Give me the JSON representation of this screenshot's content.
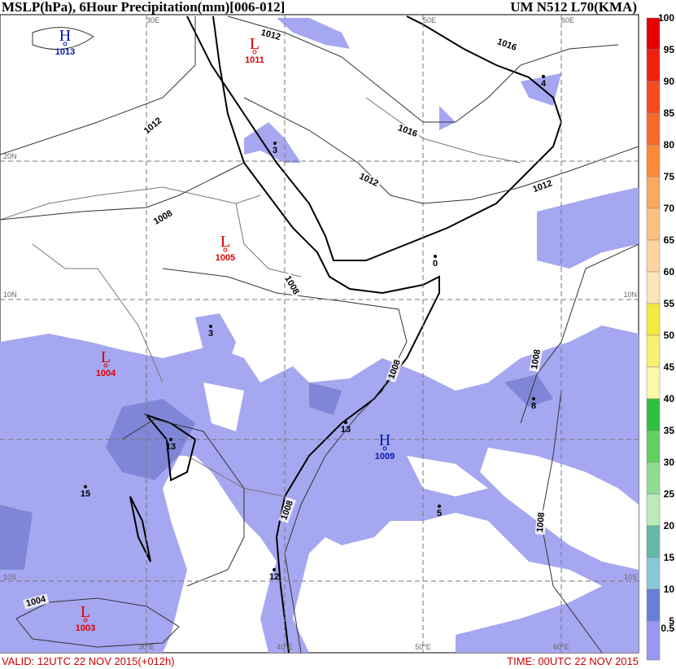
{
  "header": {
    "title": "MSLP(hPa), 6Hour Precipitation(mm)[006-012]",
    "source": "UM N512 L70(KMA)"
  },
  "footer": {
    "valid": "VALID: 12UTC 22 NOV 2015(+012h)",
    "time": "TIME: 00UTC 22 NOV 2015"
  },
  "grid_labels": [
    "30E",
    "50E",
    "60E",
    "20N",
    "10N",
    "10N",
    "10S",
    "10S",
    "30°E",
    "40°E",
    "50°E",
    "60°E"
  ],
  "centers": [
    {
      "symbol": "H",
      "pressure": 1013
    },
    {
      "symbol": "L",
      "pressure": 1011
    },
    {
      "symbol": "L",
      "pressure": 1005
    },
    {
      "symbol": "L",
      "pressure": 1004
    },
    {
      "symbol": "H",
      "pressure": 1009
    },
    {
      "symbol": "L",
      "pressure": 1003
    }
  ],
  "isobar_labels": [
    1012,
    1016,
    1012,
    1016,
    1012,
    1012,
    1008,
    1008,
    1008,
    1008,
    1008,
    1008,
    1004
  ],
  "station_values": [
    3,
    4,
    0,
    3,
    13,
    13,
    8,
    15,
    5,
    12
  ],
  "colorbar": {
    "labels": [
      100,
      95,
      90,
      85,
      80,
      75,
      70,
      65,
      60,
      55,
      50,
      45,
      40,
      35,
      30,
      25,
      20,
      15,
      10,
      5,
      0.5
    ],
    "colors": [
      "#e60000",
      "#f02010",
      "#f54a1f",
      "#f86a2a",
      "#fa8a3a",
      "#fba860",
      "#fcc080",
      "#fdd5a0",
      "#fde5b8",
      "#f7e840",
      "#f8f070",
      "#faf8a8",
      "#30c040",
      "#60d060",
      "#90dd90",
      "#b8ecb8",
      "#66b8a8",
      "#88c8d8",
      "#6680d8",
      "#9898ee"
    ]
  }
}
